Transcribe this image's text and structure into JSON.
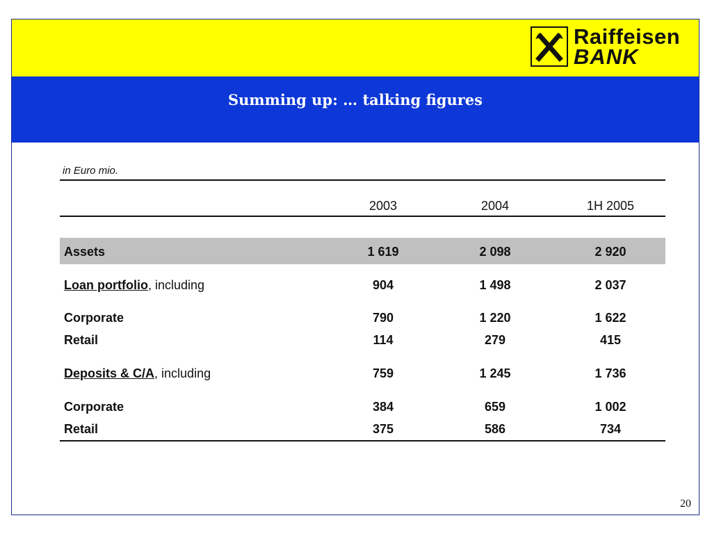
{
  "brand": {
    "line1": "Raiffeisen",
    "line2": "BANK",
    "icon": "raiffeisen-crossed-horses-icon"
  },
  "slide": {
    "title": "Summing up: … talking figures",
    "page_number": "20"
  },
  "table": {
    "unit_note": "in Euro mio.",
    "columns": [
      "2003",
      "2004",
      "1H 2005"
    ],
    "rows": [
      {
        "label": "Assets",
        "suffix": "",
        "style": "bold-highlight",
        "values": [
          "1 619",
          "2 098",
          "2 920"
        ]
      },
      {
        "label": "Loan portfolio",
        "suffix": ", including",
        "style": "underline",
        "values": [
          "904",
          "1 498",
          "2 037"
        ]
      },
      {
        "label": "Corporate",
        "suffix": "",
        "style": "bold",
        "values": [
          "790",
          "1 220",
          "1 622"
        ]
      },
      {
        "label": "Retail",
        "suffix": "",
        "style": "bold",
        "values": [
          "114",
          "279",
          "415"
        ]
      },
      {
        "label": "Deposits & C/A",
        "suffix": ", including",
        "style": "underline",
        "values": [
          "759",
          "1 245",
          "1 736"
        ]
      },
      {
        "label": "Corporate",
        "suffix": "",
        "style": "bold",
        "values": [
          "384",
          "659",
          "1 002"
        ]
      },
      {
        "label": "Retail",
        "suffix": "",
        "style": "bold",
        "values": [
          "375",
          "586",
          "734"
        ]
      }
    ]
  },
  "colors": {
    "header_yellow": "#ffff00",
    "header_blue": "#0d37d6",
    "highlight_grey": "#c0c0c0"
  }
}
